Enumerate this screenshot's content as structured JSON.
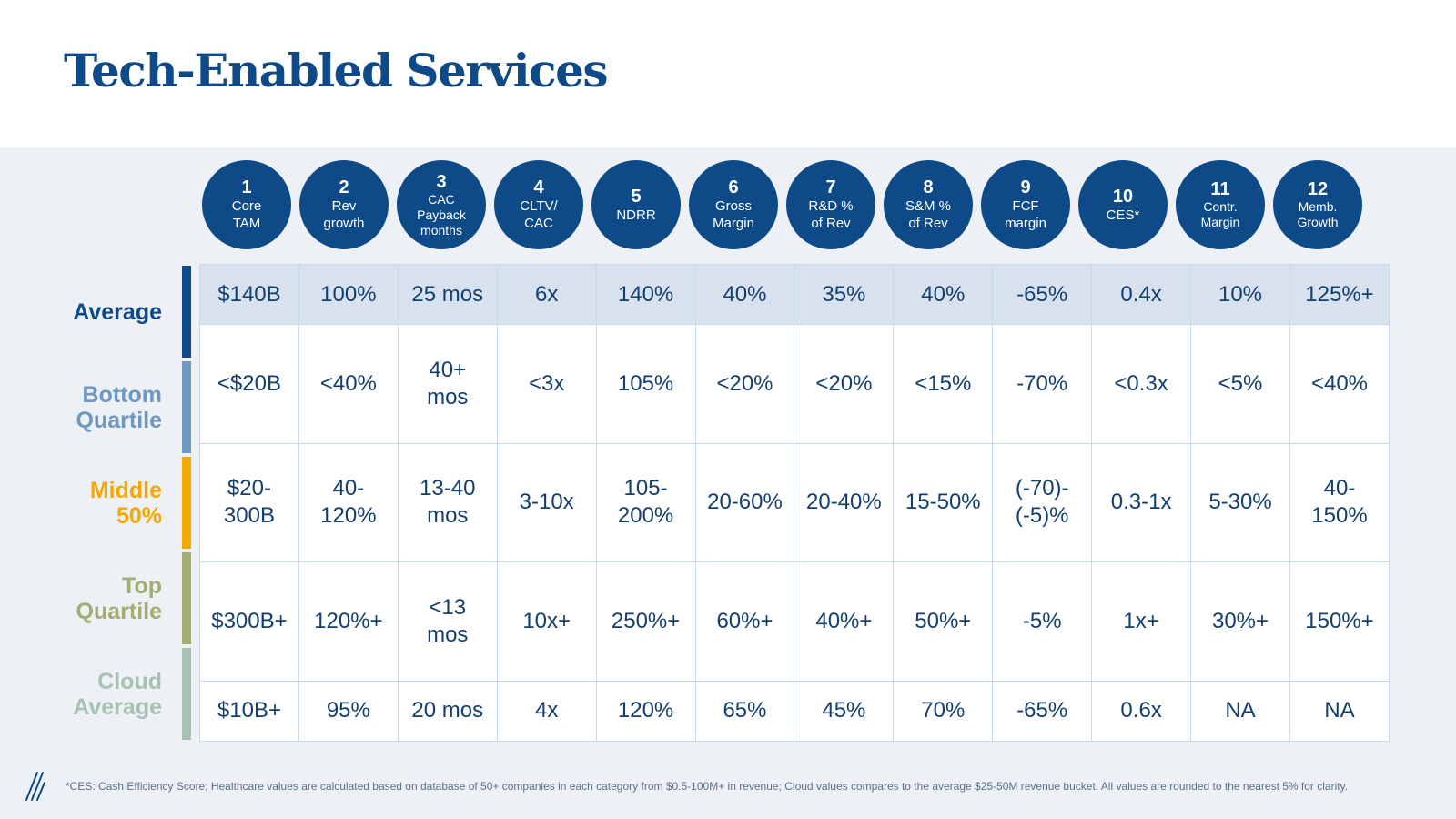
{
  "title": "Tech-Enabled Services",
  "columns": [
    {
      "num": "1",
      "label": "Core\nTAM"
    },
    {
      "num": "2",
      "label": "Rev\ngrowth"
    },
    {
      "num": "3",
      "label": "CAC\nPayback\nmonths"
    },
    {
      "num": "4",
      "label": "CLTV/\nCAC"
    },
    {
      "num": "5",
      "label": "NDRR"
    },
    {
      "num": "6",
      "label": "Gross\nMargin"
    },
    {
      "num": "7",
      "label": "R&D %\nof Rev"
    },
    {
      "num": "8",
      "label": "S&M %\nof Rev"
    },
    {
      "num": "9",
      "label": "FCF\nmargin"
    },
    {
      "num": "10",
      "label": "CES*"
    },
    {
      "num": "11",
      "label": "Contr.\nMargin"
    },
    {
      "num": "12",
      "label": "Memb.\nGrowth"
    }
  ],
  "rows": [
    {
      "label": "Average",
      "color": "#0d4a87",
      "values": [
        "$140B",
        "100%",
        "25 mos",
        "6x",
        "140%",
        "40%",
        "35%",
        "40%",
        "-65%",
        "0.4x",
        "10%",
        "125%+"
      ]
    },
    {
      "label": "Bottom\nQuartile",
      "color": "#6e98bf",
      "values": [
        "<$20B",
        "<40%",
        "40+\nmos",
        "<3x",
        "105%",
        "<20%",
        "<20%",
        "<15%",
        "-70%",
        "<0.3x",
        "<5%",
        "<40%"
      ]
    },
    {
      "label": "Middle\n50%",
      "color": "#f5a800",
      "values": [
        "$20-\n300B",
        "40-\n120%",
        "13-40\nmos",
        "3-10x",
        "105-\n200%",
        "20-60%",
        "20-40%",
        "15-50%",
        "(-70)-\n(-5)%",
        "0.3-1x",
        "5-30%",
        "40-\n150%"
      ]
    },
    {
      "label": "Top\nQuartile",
      "color": "#a3ad72",
      "values": [
        "$300B+",
        "120%+",
        "<13\nmos",
        "10x+",
        "250%+",
        "60%+",
        "40%+",
        "50%+",
        "-5%",
        "1x+",
        "30%+",
        "150%+"
      ]
    },
    {
      "label": "Cloud\nAverage",
      "color": "#a7c2b1",
      "values": [
        "$10B+",
        "95%",
        "20 mos",
        "4x",
        "120%",
        "65%",
        "45%",
        "70%",
        "-65%",
        "0.6x",
        "NA",
        "NA"
      ]
    }
  ],
  "footnote": "*CES: Cash Efficiency Score; Healthcare values are calculated based on database of 50+ companies in each category from $0.5-100M+ in revenue; Cloud values compares to the average $25-50M revenue bucket. All values are rounded to the nearest 5% for clarity."
}
